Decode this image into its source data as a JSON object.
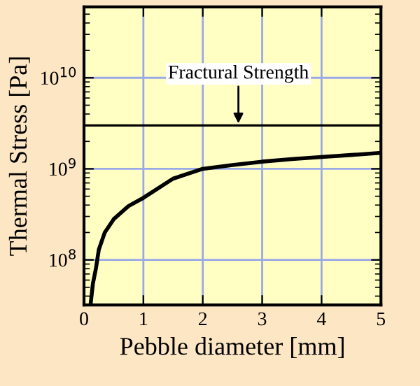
{
  "chart_data": {
    "type": "line",
    "xlabel": "Pebble diameter [mm]",
    "ylabel": "Thermal Stress [Pa]",
    "x": [
      0.11,
      0.15,
      0.2,
      0.25,
      0.35,
      0.5,
      0.75,
      1,
      1.5,
      2,
      2.5,
      3,
      3.5,
      4,
      4.5,
      5
    ],
    "series": [
      {
        "color": "#000000",
        "values": [
          32000000,
          55000000,
          80000000,
          130000000,
          200000000,
          280000000,
          390000000,
          480000000,
          780000000,
          1000000000,
          1100000000,
          1200000000,
          1280000000,
          1350000000,
          1420000000,
          1500000000
        ]
      }
    ],
    "ref_lines": [
      {
        "axis": "y",
        "value": 3000000000,
        "color": "#000000"
      }
    ],
    "annotations": [
      {
        "text": "Fractural Strength",
        "x": 2.6,
        "y": 3000000000
      }
    ],
    "log": "y",
    "grid": true,
    "legend": false,
    "marker": "none",
    "line_style": "solid",
    "xlim": [
      0,
      5
    ],
    "xticks": [
      0,
      1,
      2,
      3,
      4,
      5
    ],
    "ylim": [
      32000000,
      60000000000
    ],
    "yticks": [
      {
        "value": 100000000,
        "label": "10$^{8}$"
      },
      {
        "value": 1000000000,
        "label": "10$^{9}$"
      },
      {
        "value": 10000000000,
        "label": "10$^{10}$"
      }
    ]
  }
}
